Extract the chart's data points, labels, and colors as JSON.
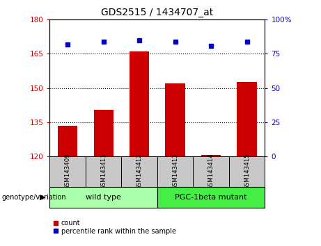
{
  "title": "GDS2515 / 1434707_at",
  "samples": [
    "GSM143409",
    "GSM143411",
    "GSM143412",
    "GSM143413",
    "GSM143414",
    "GSM143415"
  ],
  "bar_values": [
    133.5,
    140.5,
    166.0,
    152.0,
    120.5,
    152.5
  ],
  "percentile_values": [
    82,
    84,
    85,
    84,
    81,
    84
  ],
  "ylim_left": [
    120,
    180
  ],
  "ylim_right": [
    0,
    100
  ],
  "yticks_left": [
    120,
    135,
    150,
    165,
    180
  ],
  "yticks_right": [
    0,
    25,
    50,
    75,
    100
  ],
  "bar_color": "#cc0000",
  "percentile_color": "#0000cc",
  "tick_label_bg": "#c8c8c8",
  "groups": [
    {
      "label": "wild type",
      "indices": [
        0,
        1,
        2
      ],
      "color": "#aaffaa"
    },
    {
      "label": "PGC-1beta mutant",
      "indices": [
        3,
        4,
        5
      ],
      "color": "#44ee44"
    }
  ],
  "group_label": "genotype/variation",
  "legend_count_label": "count",
  "legend_percentile_label": "percentile rank within the sample"
}
